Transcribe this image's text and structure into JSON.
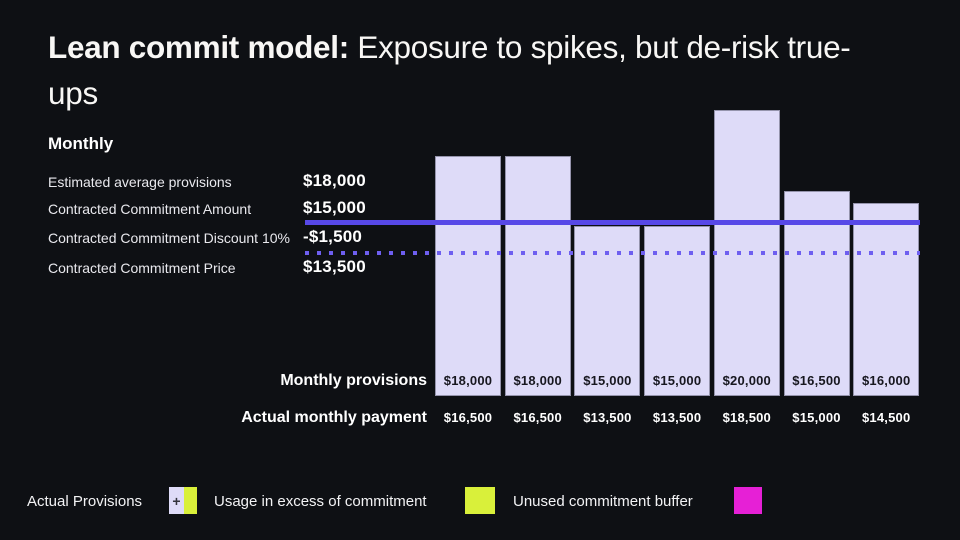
{
  "title": {
    "lead": "Lean commit model:",
    "rest": " Exposure to spikes, but de-risk true-ups"
  },
  "monthly_panel": {
    "heading": "Monthly",
    "rows": [
      {
        "label": "Estimated average provisions",
        "value": "$18,000"
      },
      {
        "label": "Contracted Commitment Amount",
        "value": "$15,000"
      },
      {
        "label": "Contracted Commitment Discount 10%",
        "value": "-$1,500"
      },
      {
        "label": "Contracted Commitment Price",
        "value": "$13,500"
      }
    ]
  },
  "chart_rows": {
    "provisions_label": "Monthly provisions",
    "payment_label": "Actual monthly payment"
  },
  "chart_data": {
    "type": "bar",
    "title": "Lean commit model monthly provisions vs commitment",
    "series": [
      {
        "name": "Monthly provisions",
        "values": [
          18000,
          18000,
          15000,
          15000,
          20000,
          16500,
          16000
        ],
        "labels": [
          "$18,000",
          "$18,000",
          "$15,000",
          "$15,000",
          "$20,000",
          "$16,500",
          "$16,000"
        ]
      },
      {
        "name": "Actual monthly payment",
        "values": [
          16500,
          16500,
          13500,
          13500,
          18500,
          15000,
          14500
        ],
        "labels": [
          "$16,500",
          "$16,500",
          "$13,500",
          "$13,500",
          "$18,500",
          "$15,000",
          "$14,500"
        ]
      }
    ],
    "reference_lines": [
      {
        "name": "Contracted Commitment Amount",
        "value": 15000,
        "style": "solid"
      },
      {
        "name": "Contracted Commitment Price",
        "value": 13500,
        "style": "dotted"
      }
    ],
    "bar_color": "#dedbf8",
    "legend_position": "bottom"
  },
  "legend": {
    "items": [
      {
        "label": "Actual Provisions",
        "swatch": "lavender-plus-yellow",
        "plus_glyph": "+"
      },
      {
        "label": "Usage in excess of commitment",
        "swatch": "yellow"
      },
      {
        "label": "Unused commitment buffer",
        "swatch": "magenta"
      }
    ]
  },
  "colors": {
    "background": "#0e1014",
    "bar_fill": "#dedbf8",
    "commitment_line_solid": "#5748e7",
    "commitment_line_dotted": "#6e5ff0",
    "excess_yellow": "#d9f03a",
    "buffer_magenta": "#e620d6"
  }
}
